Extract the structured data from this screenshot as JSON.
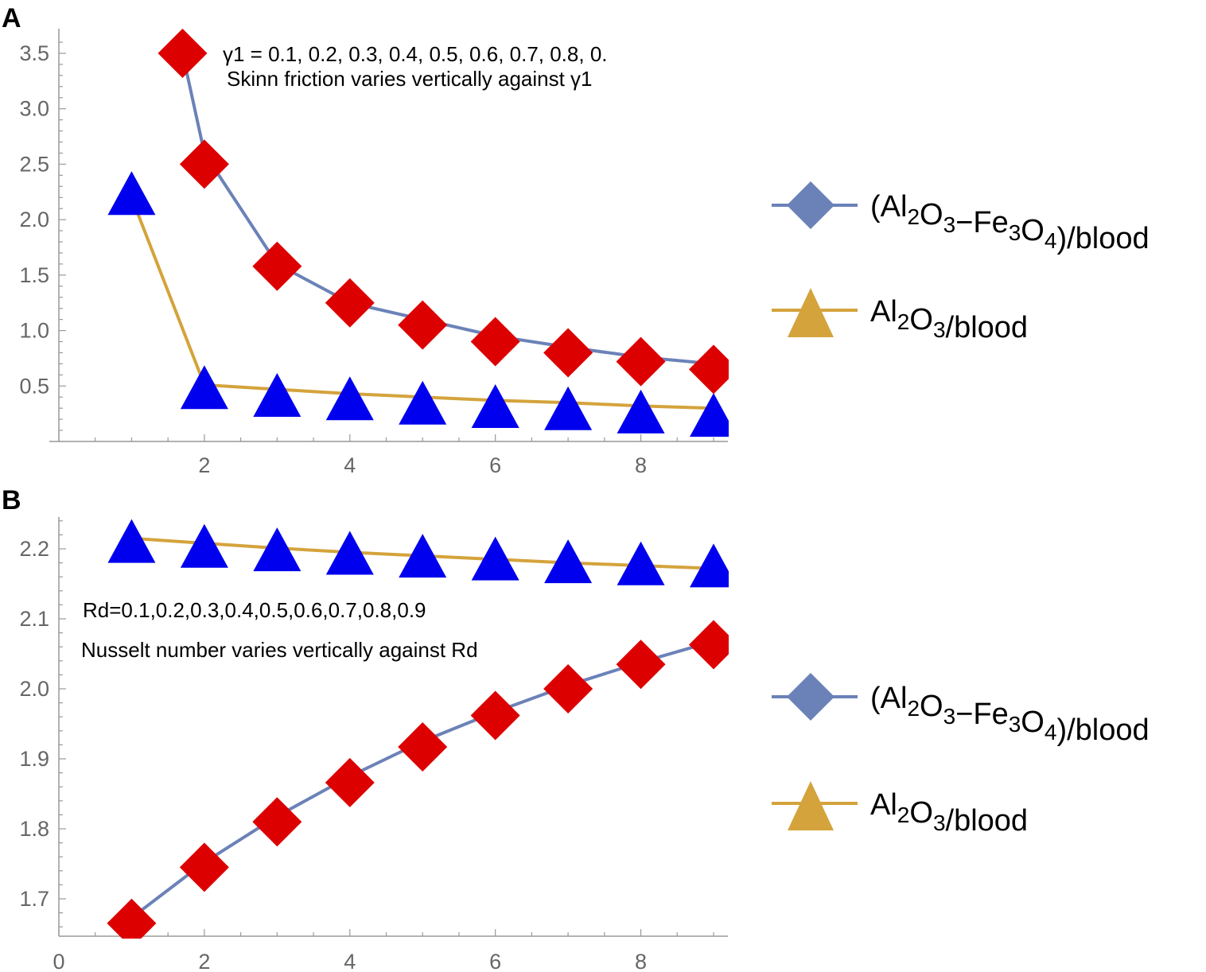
{
  "colors": {
    "hybrid_line": "#6b82b8",
    "mono_line": "#d4a33c",
    "diamond_marker": "#dd0000",
    "triangle_marker": "#0000ee",
    "axis": "#999999",
    "tick_text": "#666666"
  },
  "legend": {
    "hybrid_label": "(Al2O3−Fe3O4)/blood",
    "mono_label": "Al2O3/blood"
  },
  "chart_data": [
    {
      "panel_label": "A",
      "type": "line",
      "annotation_line1": "γ1 = 0.1, 0.2, 0.3, 0.4, 0.5, 0.6, 0.7, 0.8, 0.",
      "annotation_line2": "Skinn friction varies vertically against γ1",
      "xlim": [
        0,
        9.15
      ],
      "ylim": [
        0,
        3.7
      ],
      "x_ticks": [
        2,
        4,
        6,
        8
      ],
      "y_ticks": [
        0.5,
        1.0,
        1.5,
        2.0,
        2.5,
        3.0,
        3.5
      ],
      "x_tick_labels": [
        "2",
        "4",
        "6",
        "8"
      ],
      "y_tick_labels": [
        "0.5",
        "1.0",
        "1.5",
        "2.0",
        "2.5",
        "3.0",
        "3.5"
      ],
      "series": [
        {
          "name": "(Al2O3−Fe3O4)/blood",
          "marker": "diamond",
          "x": [
            1.7,
            2,
            3,
            4,
            5,
            6,
            7,
            8,
            9
          ],
          "y": [
            3.5,
            2.5,
            1.58,
            1.25,
            1.05,
            0.9,
            0.8,
            0.72,
            0.65
          ],
          "line_x": [
            1.7,
            2,
            3,
            4,
            5,
            6,
            7,
            8,
            9
          ],
          "line_y": [
            3.5,
            2.6,
            1.6,
            1.25,
            1.1,
            0.95,
            0.85,
            0.76,
            0.7
          ]
        },
        {
          "name": "Al2O3/blood",
          "marker": "triangle",
          "x": [
            1,
            2,
            3,
            4,
            5,
            6,
            7,
            8,
            9
          ],
          "y": [
            2.2,
            0.45,
            0.38,
            0.35,
            0.31,
            0.28,
            0.26,
            0.23,
            0.2
          ],
          "line_x": [
            1,
            2,
            3,
            4,
            5,
            6,
            7,
            8,
            9
          ],
          "line_y": [
            2.2,
            0.51,
            0.47,
            0.43,
            0.4,
            0.37,
            0.35,
            0.32,
            0.3
          ]
        }
      ]
    },
    {
      "panel_label": "B",
      "type": "line",
      "annotation_line1": "Rd=0.1,0.2,0.3,0.4,0.5,0.6,0.7,0.8,0.9",
      "annotation_line2": "Nusselt number varies vertically against Rd",
      "xlim": [
        0,
        9.15
      ],
      "ylim": [
        1.65,
        2.245
      ],
      "x_ticks": [
        0,
        2,
        4,
        6,
        8
      ],
      "y_ticks": [
        1.7,
        1.8,
        1.9,
        2.0,
        2.1,
        2.2
      ],
      "x_tick_labels": [
        "0",
        "2",
        "4",
        "6",
        "8"
      ],
      "y_tick_labels": [
        "1.7",
        "1.8",
        "1.9",
        "2.0",
        "2.1",
        "2.2"
      ],
      "series": [
        {
          "name": "(Al2O3−Fe3O4)/blood",
          "marker": "diamond",
          "x": [
            1,
            2,
            3,
            4,
            5,
            6,
            7,
            8,
            9
          ],
          "y": [
            1.665,
            1.745,
            1.81,
            1.866,
            1.917,
            1.962,
            2.0,
            2.035,
            2.063
          ],
          "line_x": [
            1,
            2,
            3,
            4,
            5,
            6,
            7,
            8,
            9
          ],
          "line_y": [
            1.673,
            1.752,
            1.818,
            1.875,
            1.925,
            1.967,
            2.005,
            2.038,
            2.068
          ]
        },
        {
          "name": "Al2O3/blood",
          "marker": "triangle",
          "x": [
            1,
            2,
            3,
            4,
            5,
            6,
            7,
            8,
            9
          ],
          "y": [
            2.205,
            2.198,
            2.193,
            2.188,
            2.184,
            2.18,
            2.176,
            2.173,
            2.17
          ],
          "line_x": [
            1,
            2,
            3,
            4,
            5,
            6,
            7,
            8,
            9
          ],
          "line_y": [
            2.215,
            2.208,
            2.201,
            2.195,
            2.19,
            2.185,
            2.18,
            2.176,
            2.172
          ]
        }
      ]
    }
  ]
}
